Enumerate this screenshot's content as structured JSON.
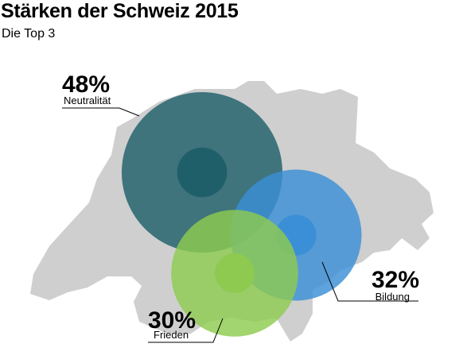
{
  "title": "Stärken der Schweiz 2015",
  "subtitle": "Die Top 3",
  "colors": {
    "map": "#cfcfcf",
    "neutralitaet": "#1f5f6a",
    "bildung": "#3a8fd6",
    "frieden": "#8dca4f",
    "leader": "#000000"
  },
  "chart_data": {
    "type": "bubble",
    "title": "Stärken der Schweiz 2015",
    "subtitle": "Die Top 3",
    "unit": "%",
    "series": [
      {
        "name": "Neutralität",
        "value": 48,
        "label": "48%"
      },
      {
        "name": "Bildung",
        "value": 32,
        "label": "32%"
      },
      {
        "name": "Frieden",
        "value": 30,
        "label": "30%"
      }
    ]
  }
}
